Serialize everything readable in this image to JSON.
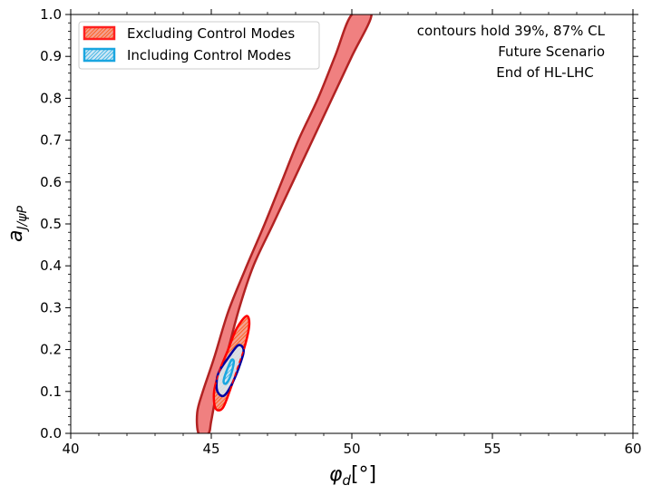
{
  "chart_data": {
    "type": "contour",
    "xlabel": "φ_d[°]",
    "ylabel": "a_{J/ψP}",
    "xlim": [
      40,
      60
    ],
    "ylim": [
      0,
      1.0
    ],
    "xticks": [
      40,
      45,
      50,
      55,
      60
    ],
    "xtick_labels": [
      "40",
      "45",
      "50",
      "55",
      "60"
    ],
    "yticks": [
      0.0,
      0.1,
      0.2,
      0.3,
      0.4,
      0.5,
      0.6,
      0.7,
      0.8,
      0.9,
      1.0
    ],
    "ytick_labels": [
      "0.0",
      "0.1",
      "0.2",
      "0.3",
      "0.4",
      "0.5",
      "0.6",
      "0.7",
      "0.8",
      "0.9",
      "1.0"
    ],
    "grid": false,
    "legend_position": "top-left",
    "legend": [
      {
        "label": "Excluding Control Modes",
        "color": "#ff2020",
        "hatch_color": "#ff2020",
        "fill": "#f4a090"
      },
      {
        "label": "Including Control Modes",
        "color": "#1aa6e0",
        "hatch_color": "#1aa6e0",
        "fill": "#cfe8f5"
      }
    ],
    "annotations": [
      "contours hold 39%, 87% CL",
      "Future Scenario",
      "End of HL-LHC"
    ],
    "colors": {
      "large_region_fill": "#f08080",
      "large_region_edge": "#b22222",
      "excluding_edge": "#ff0000",
      "excluding_hatch": "#ff5000",
      "including_outer_edge": "#0000a0",
      "including_inner_edge": "#1aa6e0",
      "including_fill": "#d6ecf7"
    },
    "series": [
      {
        "name": "Excluding Control Modes",
        "regions": [
          {
            "cl": "87%",
            "kind": "band",
            "points": [
              [
                44.55,
                0.0
              ],
              [
                44.5,
                0.05
              ],
              [
                44.7,
                0.1
              ],
              [
                45.1,
                0.18
              ],
              [
                45.6,
                0.29
              ],
              [
                46.2,
                0.39
              ],
              [
                46.9,
                0.5
              ],
              [
                47.5,
                0.6
              ],
              [
                48.1,
                0.7
              ],
              [
                48.8,
                0.8
              ],
              [
                49.4,
                0.9
              ],
              [
                50.0,
                1.0
              ],
              [
                50.7,
                1.0
              ],
              [
                50.0,
                0.9
              ],
              [
                49.3,
                0.8
              ],
              [
                48.6,
                0.7
              ],
              [
                47.9,
                0.6
              ],
              [
                47.2,
                0.5
              ],
              [
                46.5,
                0.4
              ],
              [
                46.0,
                0.3
              ],
              [
                45.6,
                0.2
              ],
              [
                45.2,
                0.1
              ],
              [
                45.0,
                0.03
              ],
              [
                44.9,
                0.0
              ]
            ]
          },
          {
            "cl": "39%",
            "kind": "ellipse",
            "center": [
              45.65,
              0.165
            ],
            "points": [
              [
                45.15,
                0.06
              ],
              [
                45.1,
                0.1
              ],
              [
                45.3,
                0.15
              ],
              [
                45.6,
                0.2
              ],
              [
                45.9,
                0.25
              ],
              [
                46.25,
                0.28
              ],
              [
                46.35,
                0.26
              ],
              [
                46.2,
                0.21
              ],
              [
                45.95,
                0.16
              ],
              [
                45.65,
                0.1
              ],
              [
                45.4,
                0.06
              ]
            ]
          }
        ]
      },
      {
        "name": "Including Control Modes",
        "regions": [
          {
            "cl": "87%",
            "kind": "ellipse",
            "center": [
              45.62,
              0.15
            ],
            "points": [
              [
                45.2,
                0.13
              ],
              [
                45.22,
                0.1
              ],
              [
                45.45,
                0.09
              ],
              [
                45.75,
                0.12
              ],
              [
                46.05,
                0.17
              ],
              [
                46.15,
                0.2
              ],
              [
                45.95,
                0.21
              ],
              [
                45.6,
                0.18
              ],
              [
                45.3,
                0.15
              ]
            ]
          },
          {
            "cl": "39%",
            "kind": "ellipse",
            "center": [
              45.62,
              0.145
            ],
            "points": [
              [
                45.45,
                0.12
              ],
              [
                45.55,
                0.12
              ],
              [
                45.7,
                0.14
              ],
              [
                45.8,
                0.17
              ],
              [
                45.72,
                0.175
              ],
              [
                45.58,
                0.155
              ],
              [
                45.45,
                0.13
              ]
            ]
          }
        ]
      }
    ]
  }
}
